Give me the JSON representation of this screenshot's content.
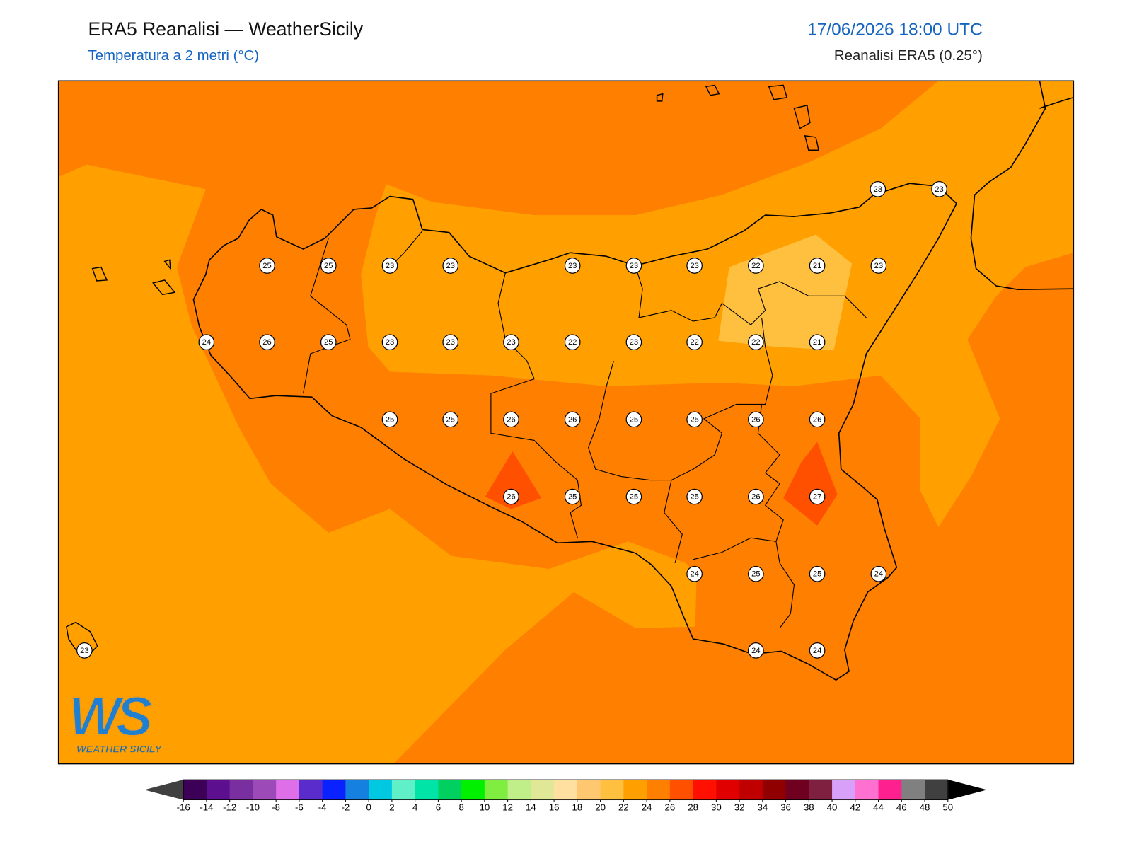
{
  "header": {
    "title": "ERA5 Reanalisi — WeatherSicily",
    "subtitle": "Temperatura a 2 metri (°C)",
    "datetime": "17/06/2026 18:00 UTC",
    "source": "Reanalisi ERA5 (0.25°)"
  },
  "points": [
    23,
    23,
    25,
    25,
    23,
    23,
    23,
    23,
    23,
    22,
    21,
    23,
    24,
    26,
    25,
    23,
    23,
    23,
    22,
    23,
    22,
    22,
    21,
    25,
    25,
    26,
    26,
    25,
    25,
    26,
    26,
    26,
    25,
    25,
    25,
    26,
    27,
    24,
    25,
    25,
    24,
    23,
    24,
    24
  ],
  "colorbar": {
    "ticks": [
      -16,
      -14,
      -12,
      -10,
      -8,
      -6,
      -4,
      -2,
      0,
      2,
      4,
      6,
      8,
      10,
      12,
      14,
      16,
      18,
      20,
      22,
      24,
      26,
      28,
      30,
      32,
      34,
      36,
      38,
      40,
      42,
      44,
      46,
      48,
      50
    ],
    "colors": [
      "#3d0057",
      "#5c1090",
      "#7a2fa0",
      "#9b4ab8",
      "#de6fe8",
      "#5b2ccc",
      "#0a22ff",
      "#1580e0",
      "#00c8e0",
      "#5ff0c8",
      "#00e4a8",
      "#00d060",
      "#00f000",
      "#80ee40",
      "#c0ee88",
      "#e0e898",
      "#ffe0a0",
      "#ffc870",
      "#ffc040",
      "#ffa000",
      "#ff8000",
      "#ff5000",
      "#ff1000",
      "#e00000",
      "#c00000",
      "#900000",
      "#700020",
      "#802040",
      "#d8a0f8",
      "#ff70d0",
      "#ff2090",
      "#808080",
      "#404040"
    ],
    "under": "#404040",
    "over": "#000000"
  },
  "logo": {
    "letters": "WS",
    "name": "WEATHER SICILY"
  }
}
